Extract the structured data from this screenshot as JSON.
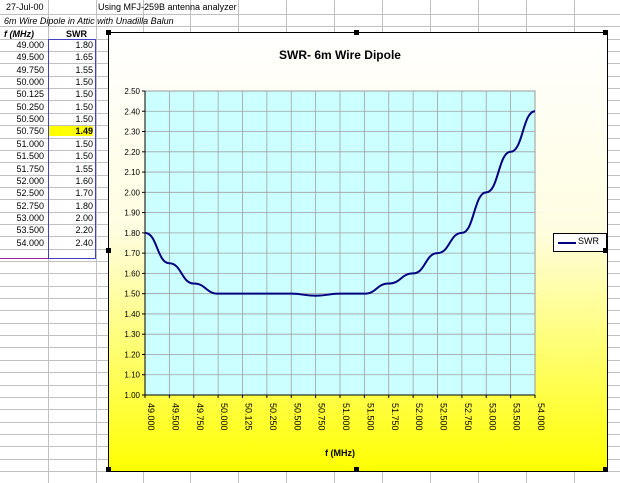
{
  "sheet": {
    "date": "27-Jul-00",
    "note": "Using MFJ-259B antenna analyzer",
    "subtitle": "6m Wire Dipole in Attic with Unadilla Balun",
    "col_header_freq": "f (MHz)",
    "col_header_swr": "SWR",
    "rows": [
      {
        "f": "49.000",
        "swr": "1.80"
      },
      {
        "f": "49.500",
        "swr": "1.65"
      },
      {
        "f": "49.750",
        "swr": "1.55"
      },
      {
        "f": "50.000",
        "swr": "1.50"
      },
      {
        "f": "50.125",
        "swr": "1.50"
      },
      {
        "f": "50.250",
        "swr": "1.50"
      },
      {
        "f": "50.500",
        "swr": "1.50"
      },
      {
        "f": "50.750",
        "swr": "1.49"
      },
      {
        "f": "51.000",
        "swr": "1.50"
      },
      {
        "f": "51.500",
        "swr": "1.50"
      },
      {
        "f": "51.750",
        "swr": "1.55"
      },
      {
        "f": "52.000",
        "swr": "1.60"
      },
      {
        "f": "52.500",
        "swr": "1.70"
      },
      {
        "f": "52.750",
        "swr": "1.80"
      },
      {
        "f": "53.000",
        "swr": "2.00"
      },
      {
        "f": "53.500",
        "swr": "2.20"
      },
      {
        "f": "54.000",
        "swr": "2.40"
      }
    ]
  },
  "chart_data": {
    "type": "line",
    "title": "SWR- 6m Wire Dipole",
    "xlabel": "f (MHz)",
    "ylabel": "",
    "categories": [
      "49.000",
      "49.500",
      "49.750",
      "50.000",
      "50.125",
      "50.250",
      "50.500",
      "50.750",
      "51.000",
      "51.500",
      "51.750",
      "52.000",
      "52.500",
      "52.750",
      "53.000",
      "53.500",
      "54.000"
    ],
    "series": [
      {
        "name": "SWR",
        "values": [
          1.8,
          1.65,
          1.55,
          1.5,
          1.5,
          1.5,
          1.5,
          1.49,
          1.5,
          1.5,
          1.55,
          1.6,
          1.7,
          1.8,
          2.0,
          2.2,
          2.4
        ]
      }
    ],
    "ylim": [
      1.0,
      2.5
    ],
    "yticks": [
      "1.00",
      "1.10",
      "1.20",
      "1.30",
      "1.40",
      "1.50",
      "1.60",
      "1.70",
      "1.80",
      "1.90",
      "2.00",
      "2.10",
      "2.20",
      "2.30",
      "2.40",
      "2.50"
    ],
    "grid": true,
    "legend": "right",
    "plot_bg": "#ccffff",
    "line_color": "#000080",
    "area_gradient": [
      "#ffffff",
      "#ffff00"
    ]
  },
  "highlight_color": "#ffff00",
  "selection_color": "#4040c0"
}
